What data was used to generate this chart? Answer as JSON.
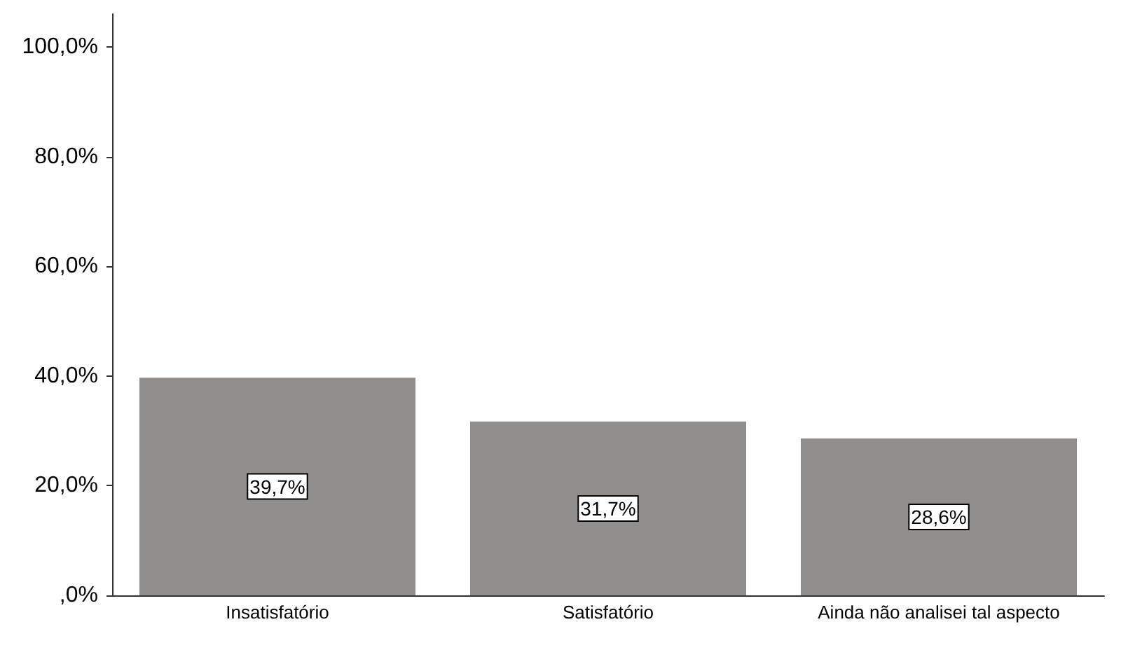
{
  "chart_data": {
    "type": "bar",
    "categories": [
      "Insatisfatório",
      "Satisfatório",
      "Ainda não analisei tal aspecto"
    ],
    "values": [
      39.7,
      31.7,
      28.6
    ],
    "value_labels": [
      "39,7%",
      "31,7%",
      "28,6%"
    ],
    "color": "#928e8c",
    "ylim": [
      0,
      106
    ],
    "yticks": [
      {
        "value": 0,
        "label": ",0%"
      },
      {
        "value": 20,
        "label": "20,0%"
      },
      {
        "value": 40,
        "label": "40,0%"
      },
      {
        "value": 60,
        "label": "60,0%"
      },
      {
        "value": 80,
        "label": "80,0%"
      },
      {
        "value": 100,
        "label": "100,0%"
      }
    ],
    "grid": false
  }
}
